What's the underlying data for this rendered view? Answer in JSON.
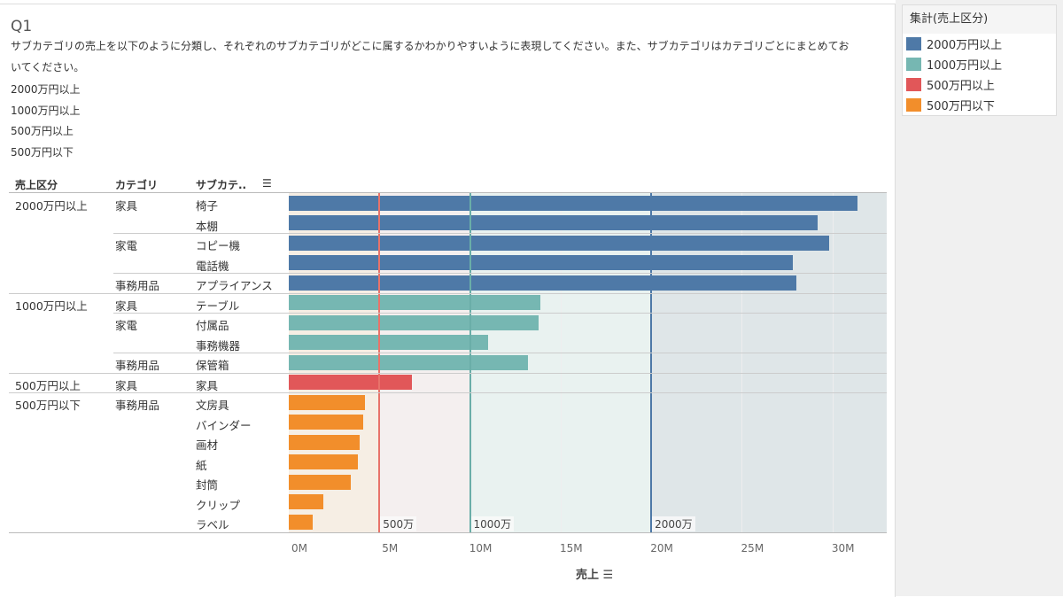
{
  "title": "Q1",
  "description": [
    "サブカテゴリの売上を以下のように分類し、それぞれのサブカテゴリがどこに属するかわかりやすいように表現してください。また、サブカテゴリはカテゴリごとにまとめてお",
    "いてください。",
    "2000万円以上",
    "1000万円以上",
    "500万円以上",
    "500万円以下"
  ],
  "legend": {
    "title": "集計(売上区分)",
    "items": [
      {
        "label": "2000万円以上",
        "color": "#4e79a7"
      },
      {
        "label": "1000万円以上",
        "color": "#76b7b2"
      },
      {
        "label": "500万円以上",
        "color": "#e15759"
      },
      {
        "label": "500万円以下",
        "color": "#f28e2b"
      }
    ]
  },
  "headers": {
    "segment": "売上区分",
    "category": "カテゴリ",
    "subcategory": "サブカテ..",
    "sort_icon": "sort-descending-icon"
  },
  "chart_data": {
    "type": "bar",
    "orientation": "horizontal",
    "xlabel": "売上",
    "xlim": [
      0,
      33000000
    ],
    "xticks": [
      "0M",
      "5M",
      "10M",
      "15M",
      "20M",
      "25M",
      "30M"
    ],
    "reference_lines": [
      {
        "value": 5000000,
        "label": "500万",
        "color": "#e8736a"
      },
      {
        "value": 10000000,
        "label": "1000万",
        "color": "#6aaea8"
      },
      {
        "value": 20000000,
        "label": "2000万",
        "color": "#4e79a7"
      }
    ],
    "bands": [
      {
        "from": 0,
        "to": 5000000,
        "color": "#f6eee4"
      },
      {
        "from": 5000000,
        "to": 10000000,
        "color": "#f4efef"
      },
      {
        "from": 10000000,
        "to": 20000000,
        "color": "#e9f2f0"
      },
      {
        "from": 20000000,
        "to": 33000000,
        "color": "#dfe6e8"
      }
    ],
    "rows": [
      {
        "segment": "2000万円以上",
        "category": "家具",
        "subcategory": "椅子",
        "value": 31400000
      },
      {
        "segment": "2000万円以上",
        "category": "家具",
        "subcategory": "本棚",
        "value": 29200000
      },
      {
        "segment": "2000万円以上",
        "category": "家電",
        "subcategory": "コピー機",
        "value": 29800000
      },
      {
        "segment": "2000万円以上",
        "category": "家電",
        "subcategory": "電話機",
        "value": 27800000
      },
      {
        "segment": "2000万円以上",
        "category": "事務用品",
        "subcategory": "アプライアンス",
        "value": 28000000
      },
      {
        "segment": "1000万円以上",
        "category": "家具",
        "subcategory": "テーブル",
        "value": 13900000
      },
      {
        "segment": "1000万円以上",
        "category": "家電",
        "subcategory": "付属品",
        "value": 13800000
      },
      {
        "segment": "1000万円以上",
        "category": "家電",
        "subcategory": "事務機器",
        "value": 11000000
      },
      {
        "segment": "1000万円以上",
        "category": "事務用品",
        "subcategory": "保管箱",
        "value": 13200000
      },
      {
        "segment": "500万円以上",
        "category": "家具",
        "subcategory": "家具",
        "value": 6800000
      },
      {
        "segment": "500万円以下",
        "category": "事務用品",
        "subcategory": "文房具",
        "value": 4200000
      },
      {
        "segment": "500万円以下",
        "category": "事務用品",
        "subcategory": "バインダー",
        "value": 4100000
      },
      {
        "segment": "500万円以下",
        "category": "事務用品",
        "subcategory": "画材",
        "value": 3900000
      },
      {
        "segment": "500万円以下",
        "category": "事務用品",
        "subcategory": "紙",
        "value": 3800000
      },
      {
        "segment": "500万円以下",
        "category": "事務用品",
        "subcategory": "封筒",
        "value": 3400000
      },
      {
        "segment": "500万円以下",
        "category": "事務用品",
        "subcategory": "クリップ",
        "value": 1900000
      },
      {
        "segment": "500万円以下",
        "category": "事務用品",
        "subcategory": "ラベル",
        "value": 1300000
      }
    ]
  }
}
